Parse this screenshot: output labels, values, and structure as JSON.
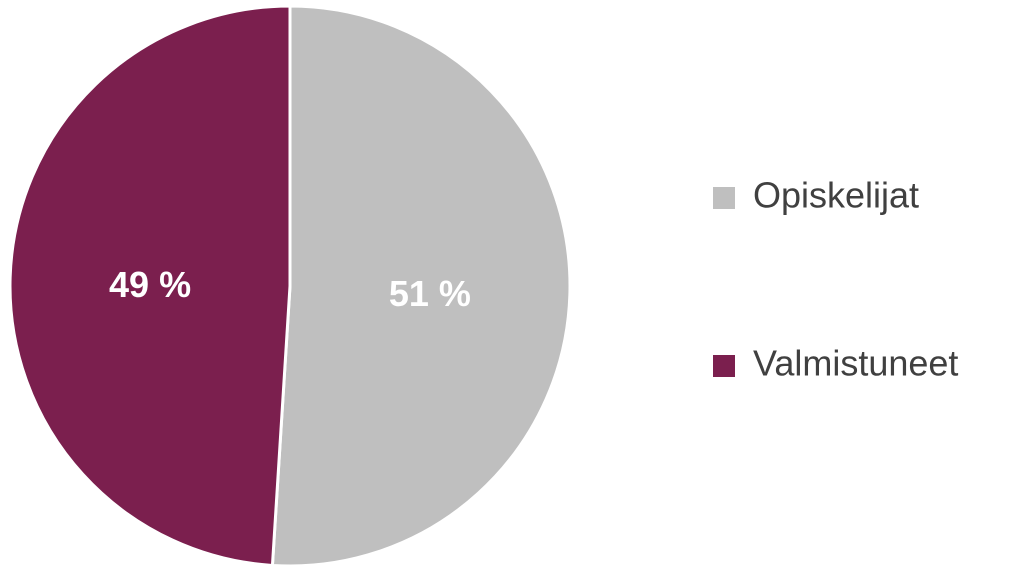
{
  "chart_data": {
    "type": "pie",
    "categories": [
      "Opiskelijat",
      "Valmistuneet"
    ],
    "values": [
      51,
      49
    ],
    "value_labels": [
      "51 %",
      "49 %"
    ],
    "colors": [
      "#bfbfbf",
      "#7b1f4e"
    ],
    "legend": "right"
  }
}
